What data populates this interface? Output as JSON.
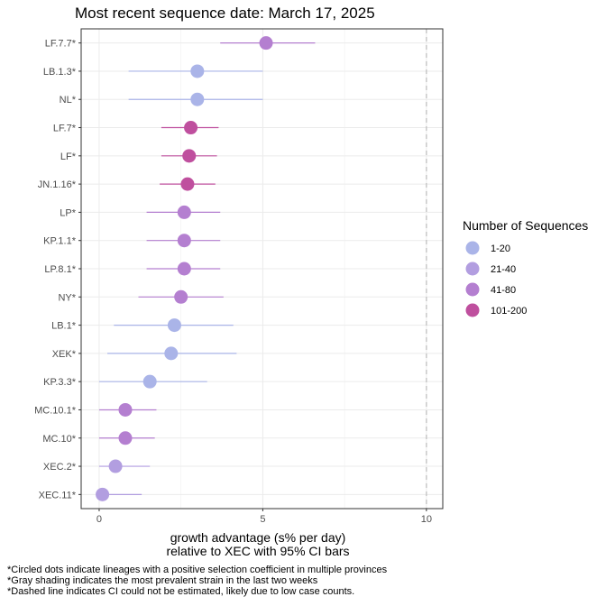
{
  "chart_data": {
    "type": "scatter",
    "title": "Most recent sequence date: March 17, 2025",
    "xlabel_line1": "growth advantage (s% per day)",
    "xlabel_line2": "relative to  XEC  with 95% CI bars",
    "xlim": [
      -0.55,
      10.5
    ],
    "xticks": [
      0,
      5,
      10
    ],
    "dashed_line_x": 10,
    "grid": true,
    "legend": {
      "title": "Number of Sequences",
      "placement": "right",
      "entries": [
        {
          "label": "1-20",
          "color": "#aab4e8"
        },
        {
          "label": "21-40",
          "color": "#b29ee0"
        },
        {
          "label": "41-80",
          "color": "#b47fd0"
        },
        {
          "label": "101-200",
          "color": "#bf4f9e"
        }
      ]
    },
    "points": [
      {
        "lineage": "LF.7.7*",
        "value": 5.1,
        "ci_low": 3.7,
        "ci_high": 6.6,
        "group": "41-80"
      },
      {
        "lineage": "LB.1.3*",
        "value": 3.0,
        "ci_low": 0.9,
        "ci_high": 5.0,
        "group": "1-20"
      },
      {
        "lineage": "NL*",
        "value": 3.0,
        "ci_low": 0.9,
        "ci_high": 5.0,
        "group": "1-20"
      },
      {
        "lineage": "LF.7*",
        "value": 2.8,
        "ci_low": 1.9,
        "ci_high": 3.65,
        "group": "101-200"
      },
      {
        "lineage": "LF*",
        "value": 2.75,
        "ci_low": 1.9,
        "ci_high": 3.6,
        "group": "101-200"
      },
      {
        "lineage": "JN.1.16*",
        "value": 2.7,
        "ci_low": 1.85,
        "ci_high": 3.55,
        "group": "101-200"
      },
      {
        "lineage": "LP*",
        "value": 2.6,
        "ci_low": 1.45,
        "ci_high": 3.7,
        "group": "41-80"
      },
      {
        "lineage": "KP.1.1*",
        "value": 2.6,
        "ci_low": 1.45,
        "ci_high": 3.7,
        "group": "41-80"
      },
      {
        "lineage": "LP.8.1*",
        "value": 2.6,
        "ci_low": 1.45,
        "ci_high": 3.7,
        "group": "41-80"
      },
      {
        "lineage": "NY*",
        "value": 2.5,
        "ci_low": 1.2,
        "ci_high": 3.8,
        "group": "41-80"
      },
      {
        "lineage": "LB.1*",
        "value": 2.3,
        "ci_low": 0.45,
        "ci_high": 4.1,
        "group": "1-20"
      },
      {
        "lineage": "XEK*",
        "value": 2.2,
        "ci_low": 0.25,
        "ci_high": 4.2,
        "group": "1-20"
      },
      {
        "lineage": "KP.3.3*",
        "value": 1.55,
        "ci_low": 0.0,
        "ci_high": 3.3,
        "group": "1-20"
      },
      {
        "lineage": "MC.10.1*",
        "value": 0.8,
        "ci_low": 0.0,
        "ci_high": 1.75,
        "group": "41-80"
      },
      {
        "lineage": "MC.10*",
        "value": 0.8,
        "ci_low": 0.0,
        "ci_high": 1.7,
        "group": "41-80"
      },
      {
        "lineage": "XEC.2*",
        "value": 0.5,
        "ci_low": 0.0,
        "ci_high": 1.55,
        "group": "21-40"
      },
      {
        "lineage": "XEC.11*",
        "value": 0.1,
        "ci_low": 0.0,
        "ci_high": 1.3,
        "group": "21-40"
      }
    ]
  },
  "footnotes": [
    "*Circled dots indicate lineages with a positive selection coefficient in multiple provinces",
    "*Gray shading indicates the most prevalent strain in the last two weeks",
    "*Dashed line indicates CI could not be estimated, likely due to low case counts."
  ]
}
